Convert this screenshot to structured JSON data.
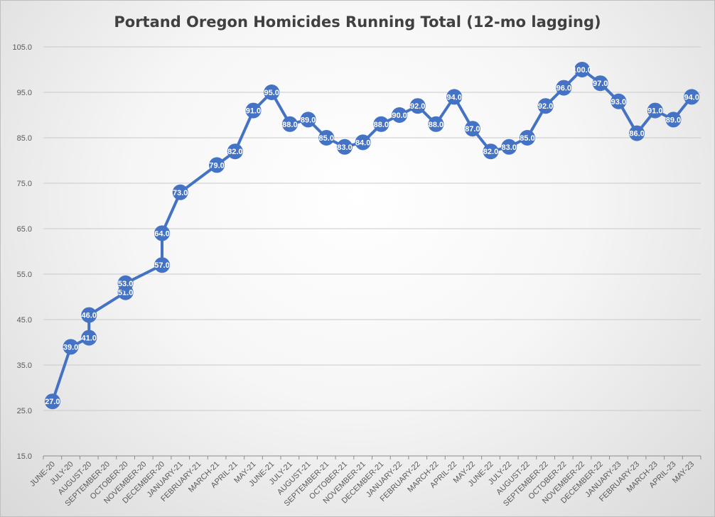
{
  "chart_data": {
    "type": "line",
    "title": "Portand Oregon Homicides Running Total (12-mo lagging)",
    "xlabel": "",
    "ylabel": "",
    "ylim": [
      15,
      105
    ],
    "yticks": [
      "15.0",
      "25.0",
      "35.0",
      "45.0",
      "55.0",
      "65.0",
      "75.0",
      "85.0",
      "95.0",
      "105.0"
    ],
    "grid": true,
    "legend": "none",
    "categories": [
      "JUNE-20",
      "JULY-20",
      "AUGUST-20",
      "SEPTEMBER-20",
      "OCTOBER-20",
      "NOVEMBER-20",
      "DECEMBER-20",
      "JANUARY-21",
      "FEBRUARY-21",
      "MARCH-21",
      "APRIL-21",
      "MAY-21",
      "JUNE-21",
      "JULY-21",
      "AUGUST-21",
      "SEPTEMBER-21",
      "OCTOBER-21",
      "NOVEMBER-21",
      "DECEMBER-21",
      "JANUARY-22",
      "FEBRUARY-22",
      "MARCH-22",
      "APRIL-22",
      "MAY-22",
      "JUNE-22",
      "JULY-22",
      "AUGUST-22",
      "SEPTEMBER-22",
      "OCTOBER-22",
      "NOVEMBER-22",
      "DECEMBER-22",
      "JANUARY-23",
      "FEBRUARY-23",
      "MARCH-23",
      "APRIL-23",
      "MAY-23"
    ],
    "points": [
      {
        "x": 0,
        "y": 27.0,
        "label": "27.0"
      },
      {
        "x": 1,
        "y": 39.0,
        "label": "39.0"
      },
      {
        "x": 2,
        "y": 41.0,
        "label": "41.0"
      },
      {
        "x": 2,
        "y": 46.0,
        "label": "46.0"
      },
      {
        "x": 4,
        "y": 51.0,
        "label": "51.0"
      },
      {
        "x": 4,
        "y": 53.0,
        "label": "53.0"
      },
      {
        "x": 6,
        "y": 57.0,
        "label": "57.0"
      },
      {
        "x": 6,
        "y": 64.0,
        "label": "64.0"
      },
      {
        "x": 7,
        "y": 73.0,
        "label": "73.0"
      },
      {
        "x": 9,
        "y": 79.0,
        "label": "79.0"
      },
      {
        "x": 10,
        "y": 82.0,
        "label": "82.0"
      },
      {
        "x": 11,
        "y": 91.0,
        "label": "91.0"
      },
      {
        "x": 12,
        "y": 95.0,
        "label": "95.0"
      },
      {
        "x": 13,
        "y": 88.0,
        "label": "88.0"
      },
      {
        "x": 14,
        "y": 89.0,
        "label": "89.0"
      },
      {
        "x": 15,
        "y": 85.0,
        "label": "85.0"
      },
      {
        "x": 16,
        "y": 83.0,
        "label": "83.0"
      },
      {
        "x": 17,
        "y": 84.0,
        "label": "84.0"
      },
      {
        "x": 18,
        "y": 88.0,
        "label": "88.0"
      },
      {
        "x": 19,
        "y": 90.0,
        "label": "90.0"
      },
      {
        "x": 20,
        "y": 92.0,
        "label": "92.0"
      },
      {
        "x": 21,
        "y": 88.0,
        "label": "88.0"
      },
      {
        "x": 22,
        "y": 94.0,
        "label": "94.0"
      },
      {
        "x": 23,
        "y": 87.0,
        "label": "87.0"
      },
      {
        "x": 24,
        "y": 82.0,
        "label": "82.0"
      },
      {
        "x": 25,
        "y": 83.0,
        "label": "83.0"
      },
      {
        "x": 26,
        "y": 85.0,
        "label": "85.0"
      },
      {
        "x": 27,
        "y": 92.0,
        "label": "92.0"
      },
      {
        "x": 28,
        "y": 96.0,
        "label": "96.0"
      },
      {
        "x": 29,
        "y": 100.0,
        "label": "100.0"
      },
      {
        "x": 30,
        "y": 97.0,
        "label": "97.0"
      },
      {
        "x": 31,
        "y": 93.0,
        "label": "93.0"
      },
      {
        "x": 32,
        "y": 86.0,
        "label": "86.0"
      },
      {
        "x": 33,
        "y": 91.0,
        "label": "91.0"
      },
      {
        "x": 34,
        "y": 89.0,
        "label": "89.0"
      },
      {
        "x": 35,
        "y": 94.0,
        "label": "94.0"
      }
    ],
    "line_color": "#4472c4",
    "marker_color": "#4472c4",
    "label_color": "#ffffff"
  }
}
